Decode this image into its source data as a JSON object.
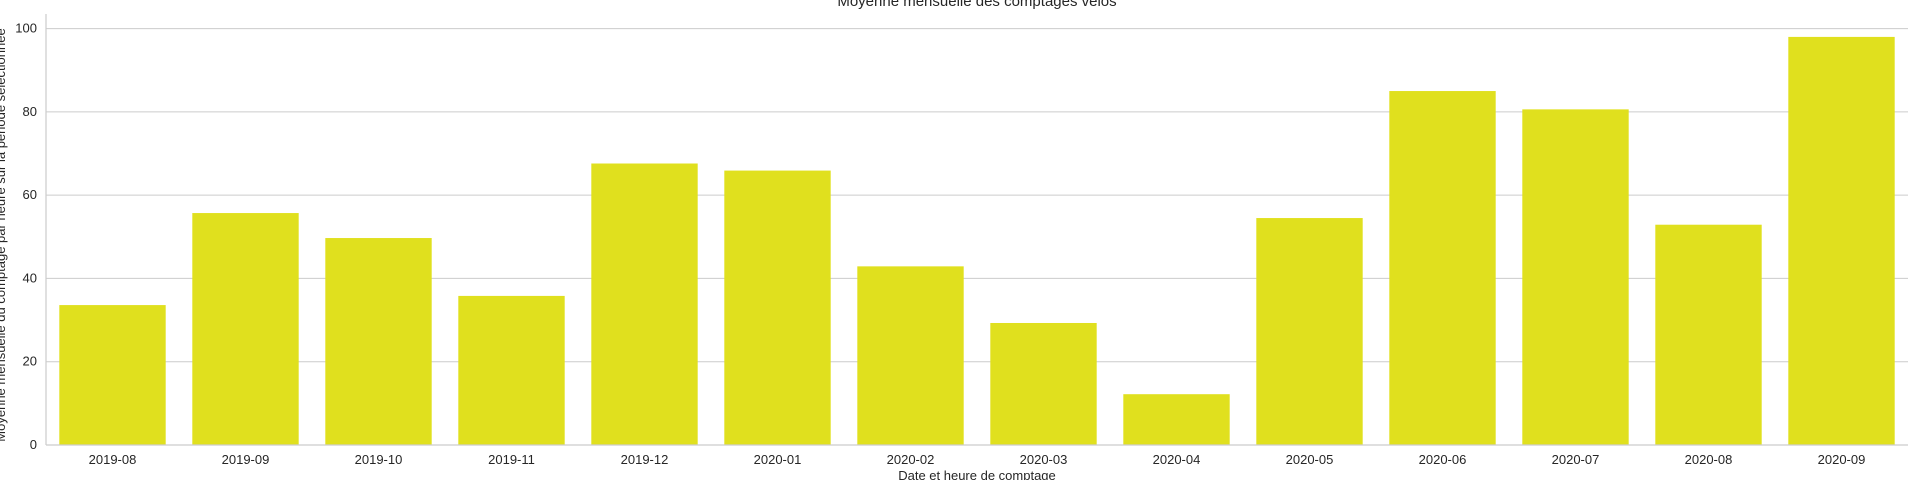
{
  "chart_data": {
    "type": "bar",
    "title": "Moyenne mensuelle des comptages vélos",
    "xlabel": "Date et heure de comptage",
    "ylabel": "Moyenne mensuelle du comptage par heure sur la période sélectionnée",
    "categories": [
      "2019-08",
      "2019-09",
      "2019-10",
      "2019-11",
      "2019-12",
      "2020-01",
      "2020-02",
      "2020-03",
      "2020-04",
      "2020-05",
      "2020-06",
      "2020-07",
      "2020-08",
      "2020-09"
    ],
    "values": [
      33.6,
      55.7,
      49.7,
      35.8,
      67.6,
      65.9,
      42.9,
      29.3,
      12.2,
      54.5,
      85.0,
      80.6,
      52.9,
      98.0
    ],
    "ylim": [
      0,
      103.5
    ],
    "yticks": [
      0,
      20,
      40,
      60,
      80,
      100
    ],
    "grid": "horizontal",
    "bar_color": "#e0e01e",
    "grid_color": "#cccccc",
    "axis_color": "#cccccc"
  }
}
